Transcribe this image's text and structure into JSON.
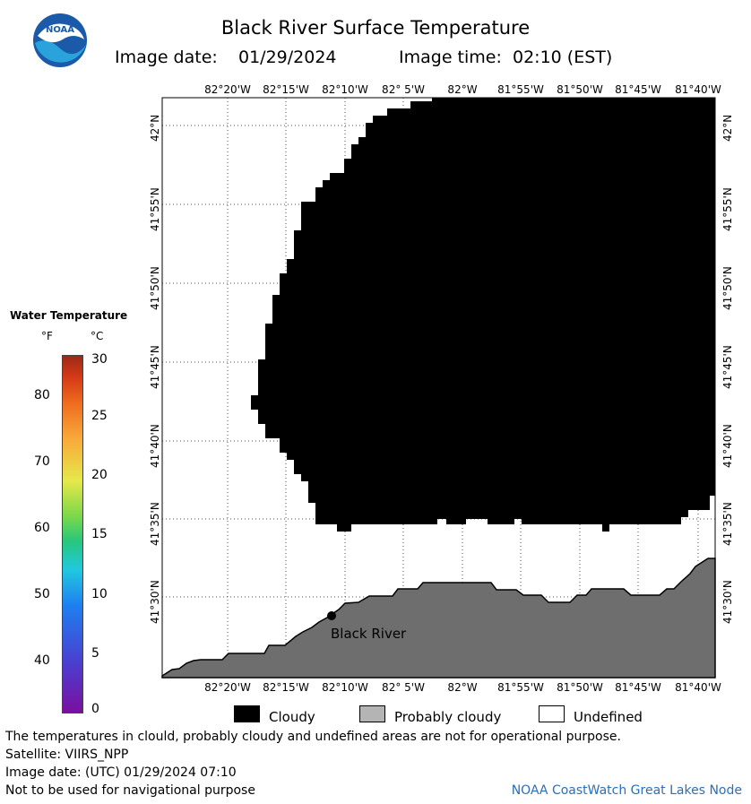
{
  "header": {
    "title": "Black River Surface Temperature",
    "image_date_label": "Image date:",
    "image_date_value": "01/29/2024",
    "image_time_label": "Image time:",
    "image_time_value": "02:10 (EST)",
    "logo_text": "NOAA"
  },
  "legend": {
    "title": "Water Temperature",
    "unit_f": "°F",
    "unit_c": "°C",
    "ticks_f": [
      "80",
      "70",
      "60",
      "50",
      "40"
    ],
    "ticks_c": [
      "30",
      "25",
      "20",
      "15",
      "10",
      "5",
      "0"
    ],
    "colors": [
      "#7b0fa0",
      "#1e7ff0",
      "#27c77c",
      "#e6e84a",
      "#ee6a1e",
      "#9c2a14"
    ]
  },
  "map": {
    "lon_labels": [
      "82°20'W",
      "82°15'W",
      "82°10'W",
      "82° 5'W",
      "82°W",
      "81°55'W",
      "81°50'W",
      "81°45'W",
      "81°40'W"
    ],
    "lat_labels": [
      "42°N",
      "41°55'N",
      "41°50'N",
      "41°45'N",
      "41°40'N",
      "41°35'N",
      "41°30'N"
    ],
    "place_label": "Black River",
    "colors": {
      "cloudy": "#000000",
      "land": "#6e6e6e",
      "undefined": "#ffffff",
      "grid": "#555555"
    }
  },
  "key": {
    "cloudy": "Cloudy",
    "probably_cloudy": "Probably cloudy",
    "undefined": "Undefined"
  },
  "footer": {
    "disclaimer": "The temperatures in clould, probably cloudy and undefined areas are not for operational purpose.",
    "satellite": "Satellite: VIIRS_NPP",
    "utc_date": "Image date: (UTC) 01/29/2024  07:10",
    "nav_warning": "Not to be used for navigational purpose",
    "credit": "NOAA CoastWatch Great Lakes Node"
  }
}
